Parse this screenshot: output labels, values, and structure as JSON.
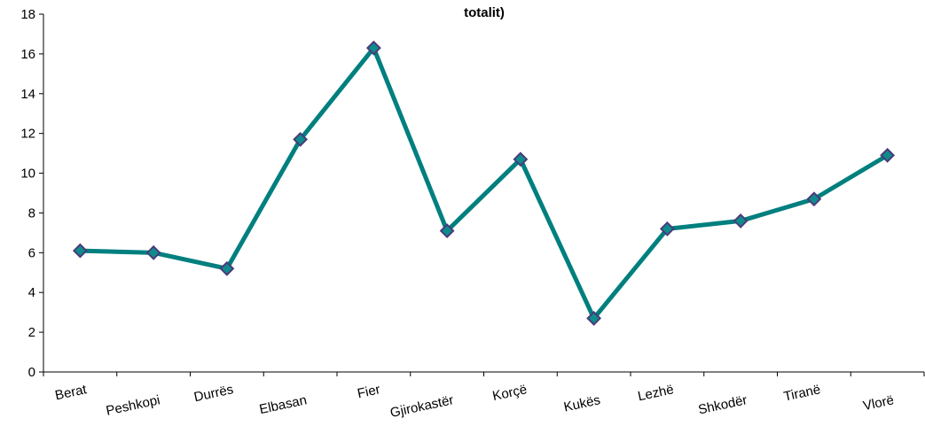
{
  "chart_data": {
    "type": "line",
    "title": "totalit)",
    "xlabel": "",
    "ylabel": "",
    "categories": [
      "Berat",
      "Peshkopi",
      "Durrës",
      "Elbasan",
      "Fier",
      "Gjirokastër",
      "Korçë",
      "Kukës",
      "Lezhë",
      "Shkodër",
      "Tiranë",
      "Vlorë"
    ],
    "series": [
      {
        "values": [
          6.1,
          6.0,
          5.2,
          11.7,
          16.3,
          7.1,
          10.7,
          2.7,
          7.2,
          7.6,
          8.7,
          10.9
        ]
      }
    ],
    "ylim": [
      0,
      18
    ],
    "yticks": [
      0,
      2,
      4,
      6,
      8,
      10,
      12,
      14,
      16,
      18
    ],
    "grid": false,
    "legend": "none",
    "line_color": "#007f7f",
    "marker_fill": "#0d8c8c",
    "marker_edge": "#4b3a7a"
  }
}
